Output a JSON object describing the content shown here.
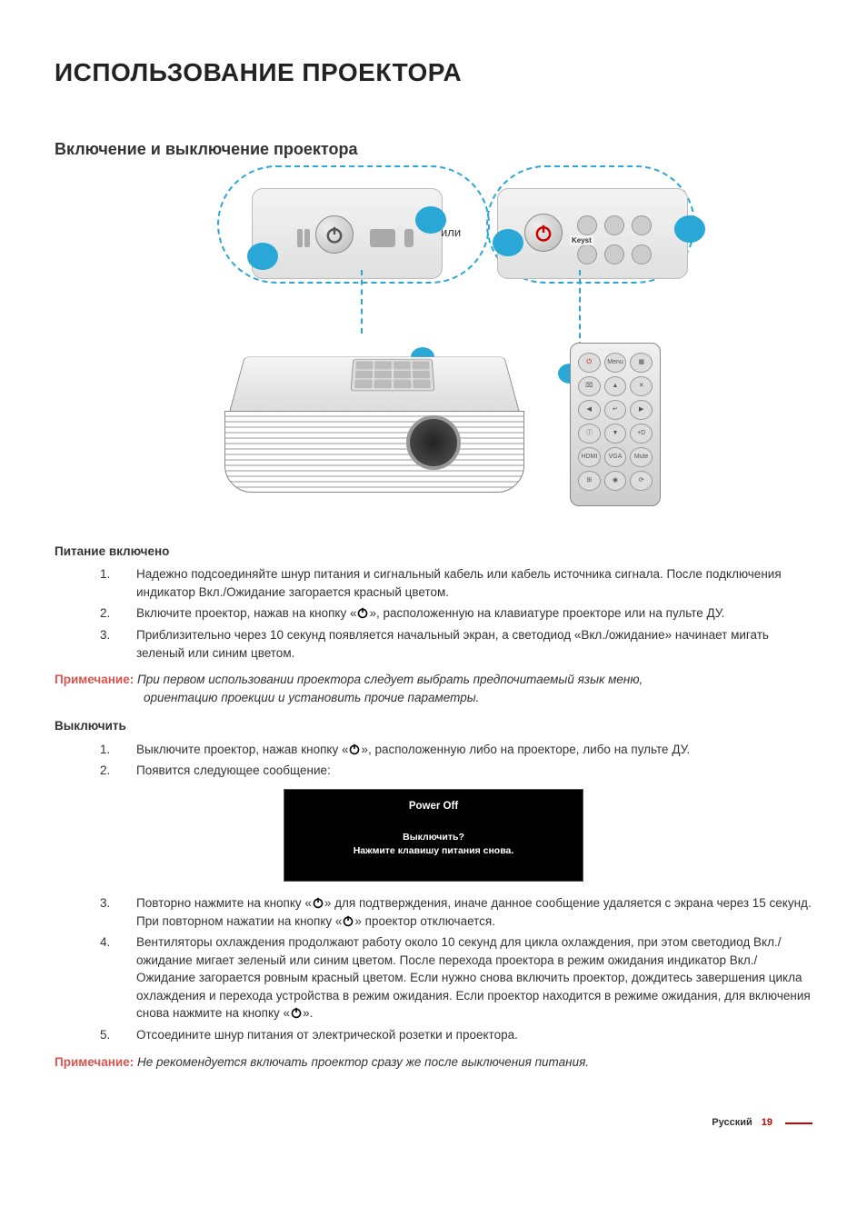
{
  "page": {
    "title": "ИСПОЛЬЗОВАНИЕ ПРОЕКТОРА",
    "section_title": "Включение и выключение проектора",
    "language_label": "Русский",
    "page_number": "19"
  },
  "colors": {
    "accent_blue": "#29a8d8",
    "note_red": "#d9534f",
    "page_red": "#cc0000",
    "body_text": "#333333",
    "dialog_bg": "#000000",
    "dialog_text": "#ffffff"
  },
  "illustration": {
    "or_label": "или",
    "keystone_label": "Keyst",
    "remote_button_labels": [
      "⏻",
      "Menu",
      "▦",
      "⌧",
      "▲",
      "✕",
      "◀",
      "↵",
      "▶",
      "ⓘ",
      "▼",
      "+D",
      "HDMI",
      "VGA",
      "Mute",
      "⊞",
      "◉",
      "⟳"
    ],
    "power_icon_color_left": "#555555",
    "power_icon_color_right": "#cc0000"
  },
  "power_on": {
    "heading": "Питание включено",
    "steps": [
      {
        "n": "1.",
        "text_before": "Надежно подсоединяйте шнур питания и сигнальный кабель или кабель источника сигнала. После подключения индикатор Вкл./Ожидание загорается красный цветом.",
        "has_icon": false
      },
      {
        "n": "2.",
        "text_before": "Включите проектор, нажав на кнопку «",
        "text_after": "», расположенную на клавиатуре проекторе или на пульте ДУ.",
        "has_icon": true
      },
      {
        "n": "3.",
        "text_before": "Приблизительно через 10 секунд появляется начальный экран, а светодиод «Вкл./ожидание» начинает мигать зеленый или синим цветом.",
        "has_icon": false
      }
    ],
    "note_label": "Примечание:",
    "note_line1": " При первом использовании проектора следует выбрать предпочитаемый язык меню,",
    "note_line2": "ориентацию проекции и установить прочие параметры."
  },
  "power_off": {
    "heading": "Выключить",
    "steps_a": [
      {
        "n": "1.",
        "text_before": "Выключите проектор, нажав кнопку «",
        "text_after": "», расположенную либо на проекторе, либо на пульте ДУ.",
        "has_icon": true
      },
      {
        "n": "2.",
        "text_before": "Появится следующее сообщение:",
        "has_icon": false
      }
    ],
    "dialog": {
      "title": "Power Off",
      "line1": "Выключить?",
      "line2": "Нажмите клавишу питания снова."
    },
    "steps_b": [
      {
        "n": "3.",
        "text_before": "Повторно нажмите на кнопку «",
        "text_mid": "» для подтверждения, иначе данное сообщение удаляется с экрана через 15 секунд. При повторном нажатии на кнопку «",
        "text_after": "» проектор отключается.",
        "icons": 2
      },
      {
        "n": "4.",
        "text_before": "Вентиляторы охлаждения продолжают работу около 10 секунд для цикла охлаждения, при этом светодиод Вкл./ожидание мигает зеленый или синим цветом. После перехода проектора в режим ожидания индикатор Вкл./Ожидание загорается ровным красный цветом. Если нужно снова включить проектор, дождитесь завершения цикла охлаждения и перехода устройства в режим ожидания. Если проектор находится в режиме ожидания, для включения снова нажмите на кнопку «",
        "text_after": "».",
        "icons": 1
      },
      {
        "n": "5.",
        "text_before": "Отсоедините шнур питания от электрической розетки и проектора.",
        "icons": 0
      }
    ],
    "note_label": "Примечание:",
    "note_text": " Не рекомендуется включать проектор сразу же после выключения питания."
  }
}
